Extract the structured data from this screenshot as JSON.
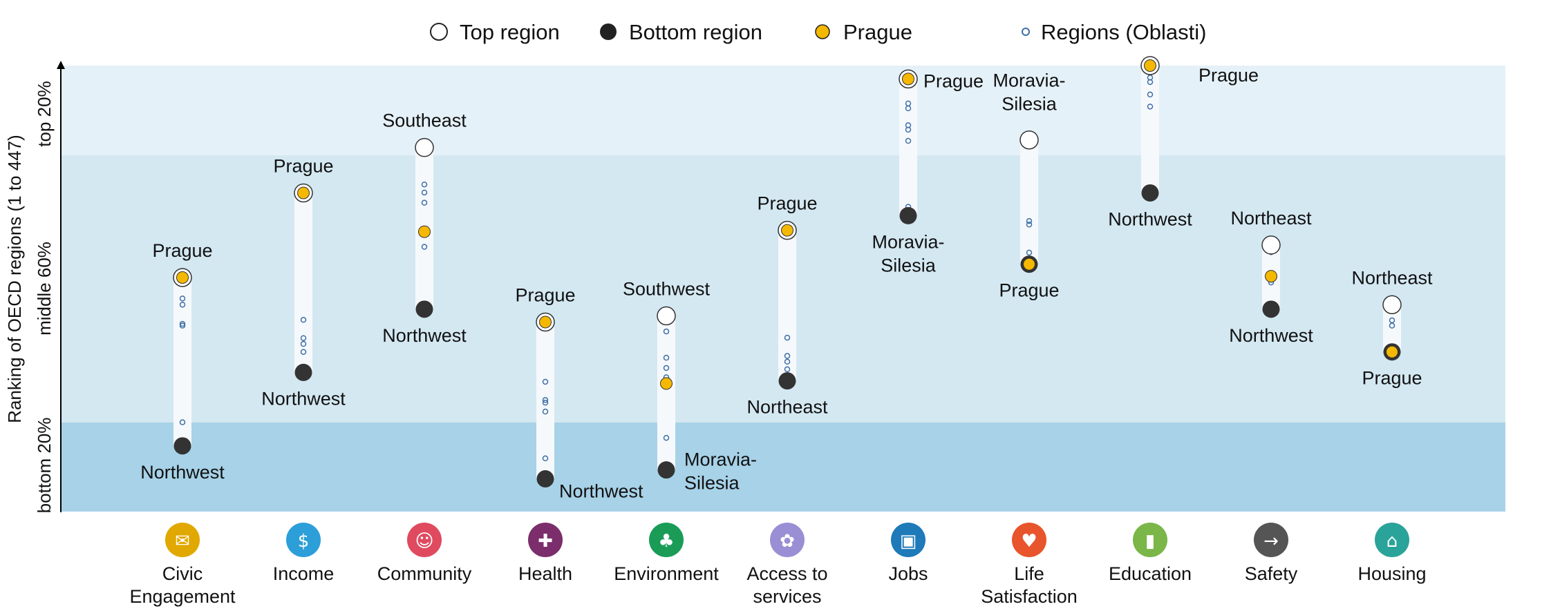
{
  "chart_data": {
    "type": "range-dot",
    "y_axis_title": "Ranking of OECD regions (1 to 447)",
    "bands": [
      "top 20%",
      "middle 60%",
      "bottom 20%"
    ],
    "legend": [
      {
        "key": "top",
        "label": "Top region"
      },
      {
        "key": "bottom",
        "label": "Bottom region"
      },
      {
        "key": "prague",
        "label": "Prague"
      },
      {
        "key": "regions",
        "label": "Regions (Oblasti)"
      }
    ],
    "colors": {
      "prague": "#f5b800",
      "bottom": "#333333",
      "top": "#ffffff",
      "regions": "#3d6fa6",
      "band_top": "#e5f1f8",
      "band_middle": "#d4e8f2",
      "band_bottom": "#a7d2e8"
    },
    "ylim": [
      0,
      100
    ],
    "categories": [
      {
        "name": "Civic Engagement",
        "label_lines": [
          "Civic",
          "Engagement"
        ],
        "icon": "ballot-icon",
        "color": "#e0a800",
        "top": {
          "name": "Prague",
          "rank": 52.4
        },
        "bottom": {
          "name": "Northwest",
          "rank": 14.6
        },
        "prague": 52.4,
        "regions": [
          47.7,
          46.3,
          42.0,
          41.6,
          19.9
        ]
      },
      {
        "name": "Income",
        "label_lines": [
          "Income"
        ],
        "icon": "money-icon",
        "color": "#2c9fd9",
        "top": {
          "name": "Prague",
          "rank": 71.4
        },
        "bottom": {
          "name": "Northwest",
          "rank": 31.1
        },
        "prague": 71.4,
        "regions": [
          42.9,
          38.8,
          37.5,
          35.7
        ]
      },
      {
        "name": "Community",
        "label_lines": [
          "Community"
        ],
        "icon": "people-icon",
        "color": "#e04a5f",
        "top": {
          "name": "Southeast",
          "rank": 81.6
        },
        "bottom": {
          "name": "Northwest",
          "rank": 45.3
        },
        "prague": 62.7,
        "regions": [
          73.3,
          71.5,
          69.2,
          59.3
        ]
      },
      {
        "name": "Health",
        "label_lines": [
          "Health"
        ],
        "icon": "cross-icon",
        "color": "#7b2e6b",
        "top": {
          "name": "Prague",
          "rank": 42.4
        },
        "bottom": {
          "name": "Northwest",
          "rank": 7.2
        },
        "prague": 42.4,
        "regions": [
          29.0,
          24.9,
          24.3,
          22.3,
          11.8
        ]
      },
      {
        "name": "Environment",
        "label_lines": [
          "Environment"
        ],
        "icon": "tree-icon",
        "color": "#1a9c57",
        "top": {
          "name": "Southwest",
          "rank": 43.8
        },
        "bottom": {
          "name": "Moravia-Silesia",
          "rank": 9.2
        },
        "prague": 28.6,
        "regions": [
          40.3,
          34.4,
          32.1,
          30.0,
          16.4
        ]
      },
      {
        "name": "Access to services",
        "label_lines": [
          "Access to",
          "services"
        ],
        "icon": "network-icon",
        "color": "#9a8fd4",
        "top": {
          "name": "Prague",
          "rank": 63.0
        },
        "bottom": {
          "name": "Northeast",
          "rank": 29.2
        },
        "prague": 63.0,
        "regions": [
          38.9,
          34.8,
          33.5,
          31.8
        ]
      },
      {
        "name": "Jobs",
        "label_lines": [
          "Jobs"
        ],
        "icon": "briefcase-icon",
        "color": "#1e7ab8",
        "top": {
          "name": "Prague",
          "rank": 97.0
        },
        "bottom": {
          "name": "Moravia-Silesia",
          "rank": 66.3
        },
        "prague": 97.0,
        "regions": [
          91.5,
          90.4,
          86.6,
          85.6,
          83.1,
          68.3
        ]
      },
      {
        "name": "Life Satisfaction",
        "label_lines": [
          "Life",
          "Satisfaction"
        ],
        "icon": "heart-icon",
        "color": "#e8542b",
        "top": {
          "name": "Moravia-Silesia",
          "rank": 83.3
        },
        "bottom": {
          "name": "Prague",
          "rank": 55.4
        },
        "prague": 55.4,
        "regions": [
          65.1,
          64.3,
          58.0
        ]
      },
      {
        "name": "Education",
        "label_lines": [
          "Education"
        ],
        "icon": "book-icon",
        "color": "#7ab648",
        "top": {
          "name": "Prague",
          "rank": 100.0
        },
        "bottom": {
          "name": "Northwest",
          "rank": 71.4
        },
        "prague": 100.0,
        "regions": [
          98.4,
          97.3,
          96.3,
          93.5,
          90.8
        ]
      },
      {
        "name": "Safety",
        "label_lines": [
          "Safety"
        ],
        "icon": "runner-icon",
        "color": "#555555",
        "top": {
          "name": "Northeast",
          "rank": 59.7
        },
        "bottom": {
          "name": "Northwest",
          "rank": 45.3
        },
        "prague": 52.7,
        "regions": [
          58.1,
          51.9,
          51.3
        ]
      },
      {
        "name": "Housing",
        "label_lines": [
          "Housing"
        ],
        "icon": "house-icon",
        "color": "#2aa39a",
        "top": {
          "name": "Northeast",
          "rank": 46.3
        },
        "bottom": {
          "name": "Prague",
          "rank": 35.7
        },
        "prague": 35.7,
        "regions": [
          42.8,
          41.6
        ]
      }
    ]
  }
}
